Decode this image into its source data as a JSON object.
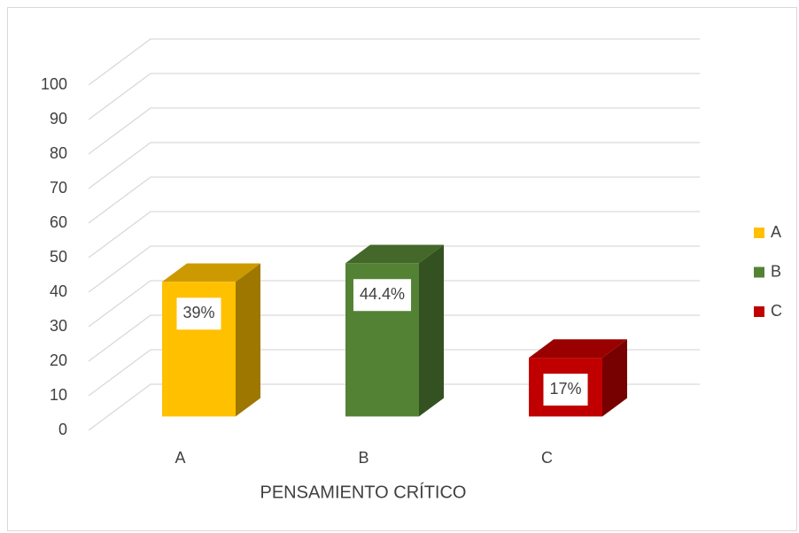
{
  "chart_data": {
    "type": "bar3d",
    "categories": [
      "A",
      "B",
      "C"
    ],
    "values": [
      39,
      44.4,
      17
    ],
    "value_labels": [
      "39%",
      "44.4%",
      "17%"
    ],
    "colors": [
      "#FFC000",
      "#548235",
      "#C00000"
    ],
    "x_label": "PENSAMIENTO CRÍTICO",
    "ylim": [
      0,
      100
    ],
    "yticks": [
      0,
      10,
      20,
      30,
      40,
      50,
      60,
      70,
      80,
      90,
      100
    ],
    "grid": true,
    "legend": "right"
  }
}
